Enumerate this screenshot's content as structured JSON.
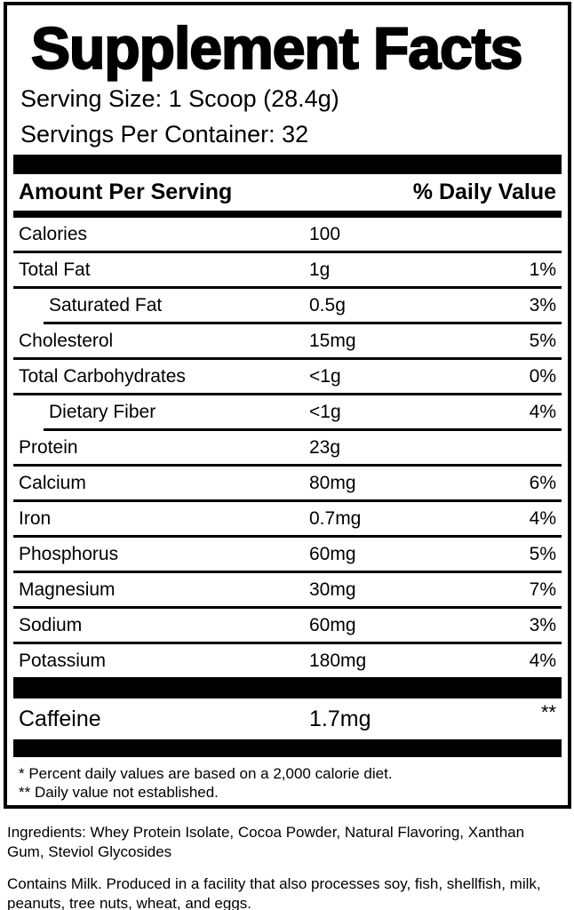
{
  "colors": {
    "text": "#000000",
    "background": "#ffffff"
  },
  "panel": {
    "title": "Supplement Facts",
    "serving_size": "Serving Size: 1 Scoop (28.4g)",
    "servings_per_container": "Servings Per Container: 32",
    "columns": {
      "amount_header": "Amount Per Serving",
      "dv_header": "% Daily Value"
    },
    "rows": [
      {
        "name": "Calories",
        "amount": "100",
        "dv": ""
      },
      {
        "name": "Total Fat",
        "amount": "1g",
        "dv": "1%"
      },
      {
        "name": "Saturated Fat",
        "amount": "0.5g",
        "dv": "3%",
        "indent": true
      },
      {
        "name": "Cholesterol",
        "amount": "15mg",
        "dv": "5%"
      },
      {
        "name": "Total Carbohydrates",
        "amount": "<1g",
        "dv": "0%"
      },
      {
        "name": "Dietary Fiber",
        "amount": "<1g",
        "dv": "4%",
        "indent": true
      },
      {
        "name": "Protein",
        "amount": "23g",
        "dv": ""
      },
      {
        "name": "Calcium",
        "amount": "80mg",
        "dv": "6%"
      },
      {
        "name": "Iron",
        "amount": "0.7mg",
        "dv": "4%"
      },
      {
        "name": "Phosphorus",
        "amount": "60mg",
        "dv": "5%"
      },
      {
        "name": "Magnesium",
        "amount": "30mg",
        "dv": "7%"
      },
      {
        "name": "Sodium",
        "amount": "60mg",
        "dv": "3%"
      },
      {
        "name": "Potassium",
        "amount": "180mg",
        "dv": "4%"
      }
    ],
    "caffeine_row": {
      "name": "Caffeine",
      "amount": "1.7mg",
      "dv": "**"
    },
    "footnotes": [
      "* Percent daily values are based on a 2,000 calorie diet.",
      "** Daily value not established."
    ]
  },
  "ingredients": "Ingredients: Whey Protein Isolate, Cocoa Powder, Natural Flavoring, Xanthan Gum, Steviol Glycosides",
  "allergen": "Contains Milk. Produced in a facility that also processes soy, fish, shellfish, milk, peanuts, tree nuts, wheat, and eggs."
}
